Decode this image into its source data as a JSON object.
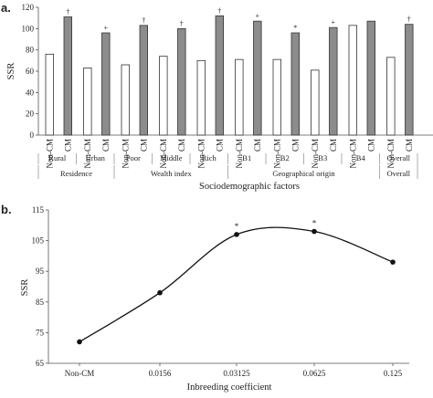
{
  "chart_data": [
    {
      "panel_label": "a.",
      "type": "bar",
      "ylabel": "SSR",
      "xlabel": "Sociodemographic factors",
      "ylim": [
        0,
        120
      ],
      "yticks": [
        0,
        20,
        40,
        60,
        80,
        100,
        120
      ],
      "grid": false,
      "series_labels": [
        "Non-CM",
        "CM"
      ],
      "series_colors": [
        "#ffffff",
        "#8c8c8c"
      ],
      "categories": [
        "Rural",
        "Urban",
        "Poor",
        "Middle",
        "Rich",
        "B1",
        "B2",
        "B3",
        "B4",
        "Overall"
      ],
      "values": {
        "non_cm": [
          76,
          63,
          66,
          74,
          70,
          71,
          71,
          61,
          103,
          73
        ],
        "cm": [
          111,
          96,
          103,
          100,
          112,
          107,
          96,
          101,
          107,
          104
        ]
      },
      "markers": [
        "†",
        "+",
        "†",
        "†",
        "†",
        "+",
        "*",
        "+",
        "",
        "†"
      ],
      "groups": [
        {
          "label": "Residence",
          "first": 0,
          "count": 2
        },
        {
          "label": "Wealth index",
          "first": 2,
          "count": 3
        },
        {
          "label": "Geographical origin",
          "first": 5,
          "count": 4
        },
        {
          "label": "Overall",
          "first": 9,
          "count": 1
        }
      ]
    },
    {
      "panel_label": "b.",
      "type": "line",
      "ylabel": "SSR",
      "xlabel": "Inbreeding coefficient",
      "ylim": [
        65,
        115
      ],
      "yticks": [
        "65",
        "75",
        "85",
        "95",
        "105",
        "115"
      ],
      "grid": false,
      "categories": [
        "Non-CM",
        "0.0156",
        "0.03125",
        "0.0625",
        "0.125"
      ],
      "values": [
        72,
        88,
        107,
        108,
        98
      ],
      "markers": [
        "",
        "",
        "*",
        "*",
        ""
      ]
    }
  ]
}
